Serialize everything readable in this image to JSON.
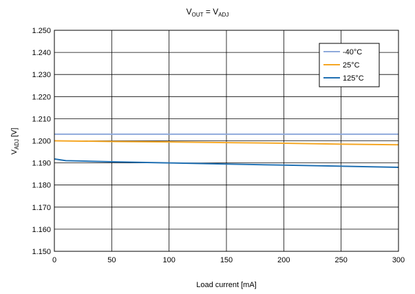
{
  "chart_data": {
    "type": "line",
    "title": {
      "main": "V",
      "main_sub": "OUT",
      "eq": " = V",
      "rhs_sub": "ADJ"
    },
    "xlabel": "Load current [mA]",
    "ylabel": {
      "main": "V",
      "sub": "ADJ",
      "unit": " [V]"
    },
    "xlim": [
      0,
      300
    ],
    "ylim": [
      1.15,
      1.25
    ],
    "x_ticks": [
      0,
      50,
      100,
      150,
      200,
      250,
      300
    ],
    "x_tick_labels": [
      "0",
      "50",
      "100",
      "150",
      "200",
      "250",
      "300"
    ],
    "y_ticks": [
      1.15,
      1.16,
      1.17,
      1.18,
      1.19,
      1.2,
      1.21,
      1.22,
      1.23,
      1.24,
      1.25
    ],
    "y_tick_labels": [
      "1.150",
      "1.160",
      "1.170",
      "1.180",
      "1.190",
      "1.200",
      "1.210",
      "1.220",
      "1.230",
      "1.240",
      "1.250"
    ],
    "grid": true,
    "legend_position": "top-right",
    "series": [
      {
        "name": "-40°C",
        "color": "#8EA9DB",
        "points": [
          [
            0,
            1.203
          ],
          [
            50,
            1.203
          ],
          [
            100,
            1.203
          ],
          [
            150,
            1.203
          ],
          [
            200,
            1.203
          ],
          [
            250,
            1.203
          ],
          [
            300,
            1.203
          ]
        ]
      },
      {
        "name": "25°C",
        "color": "#F5A623",
        "points": [
          [
            0,
            1.2
          ],
          [
            50,
            1.1997
          ],
          [
            100,
            1.1995
          ],
          [
            150,
            1.1992
          ],
          [
            200,
            1.1989
          ],
          [
            250,
            1.1985
          ],
          [
            300,
            1.1982
          ]
        ]
      },
      {
        "name": "125°C",
        "color": "#1F6FB2",
        "points": [
          [
            0,
            1.1918
          ],
          [
            5,
            1.1914
          ],
          [
            10,
            1.191
          ],
          [
            50,
            1.1905
          ],
          [
            100,
            1.19
          ],
          [
            150,
            1.1895
          ],
          [
            200,
            1.189
          ],
          [
            250,
            1.1885
          ],
          [
            300,
            1.188
          ]
        ]
      }
    ]
  }
}
